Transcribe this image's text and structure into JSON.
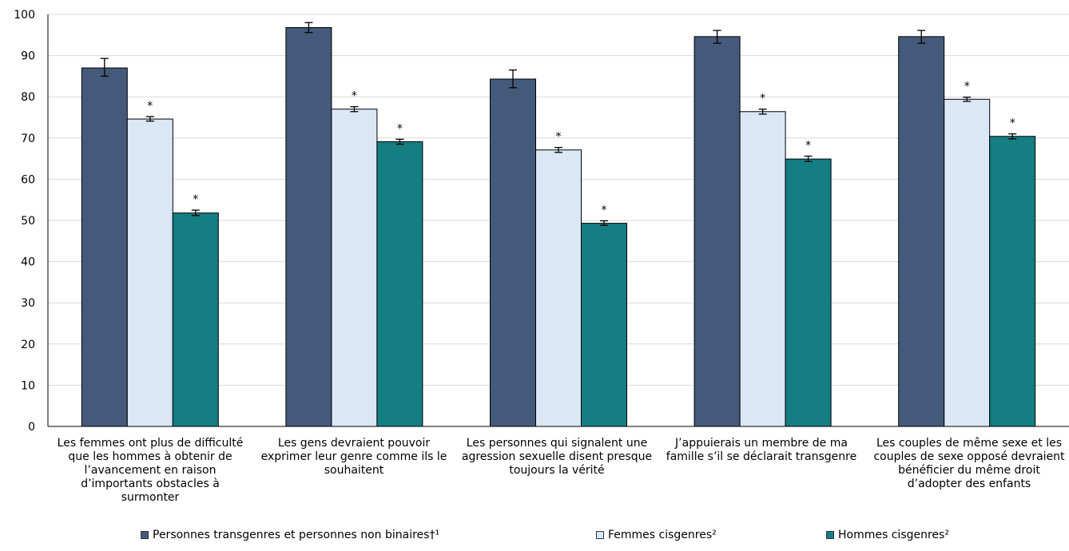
{
  "chart_data": {
    "type": "bar",
    "categories": [
      "Les femmes ont plus de difficulté que les hommes à obtenir de l’avancement en raison d’importants obstacles à surmonter",
      "Les gens devraient pouvoir exprimer leur genre comme ils le souhaitent",
      "Les personnes qui signalent une agression sexuelle disent presque toujours la vérité",
      "J’appuierais un membre de ma famille s’il se déclarait transgenre",
      "Les couples de même sexe et les couples de sexe opposé devraient bénéficier du même droit d’adopter des enfants"
    ],
    "series": [
      {
        "name": "Personnes transgenres et personnes non binaires†¹",
        "color": "#445a7a",
        "values": [
          87.0,
          96.8,
          84.3,
          94.6,
          94.6
        ],
        "error_low": [
          85.0,
          95.6,
          82.2,
          93.0,
          93.0
        ],
        "error_high": [
          89.3,
          98.0,
          86.5,
          96.1,
          96.1
        ],
        "significance": [
          "",
          "",
          "",
          "",
          ""
        ]
      },
      {
        "name": "Femmes cisgenres²",
        "color": "#d9e7f7",
        "values": [
          74.6,
          77.0,
          67.1,
          76.4,
          79.4
        ],
        "error_low": [
          74.1,
          76.4,
          66.5,
          75.8,
          78.9
        ],
        "error_high": [
          75.2,
          77.6,
          67.7,
          77.0,
          79.9
        ],
        "significance": [
          "*",
          "*",
          "*",
          "*",
          "*"
        ]
      },
      {
        "name": "Hommes cisgenres²",
        "color": "#147e82",
        "values": [
          51.8,
          69.1,
          49.3,
          64.9,
          70.4
        ],
        "error_low": [
          51.2,
          68.5,
          48.8,
          64.3,
          69.8
        ],
        "error_high": [
          52.5,
          69.7,
          49.9,
          65.6,
          71.0
        ],
        "significance": [
          "*",
          "*",
          "*",
          "*",
          "*"
        ]
      }
    ],
    "ylim": [
      0,
      100
    ],
    "yticks": [
      0,
      10,
      20,
      30,
      40,
      50,
      60,
      70,
      80,
      90,
      100
    ],
    "xlabel": "",
    "ylabel": "",
    "title": "",
    "grid": true,
    "legend_position": "bottom"
  }
}
